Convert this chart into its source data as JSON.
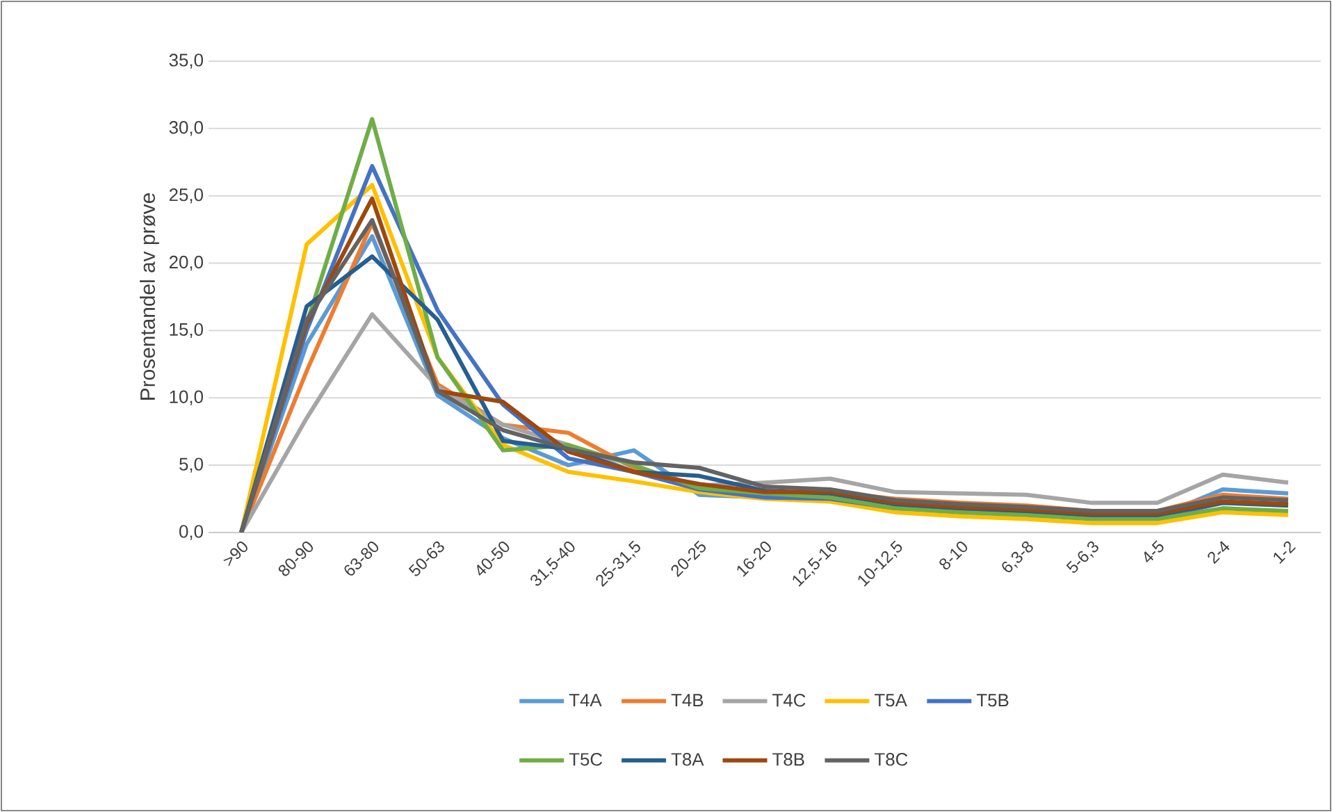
{
  "chart_data": {
    "type": "line",
    "ylabel": "Prosentandel av prøve",
    "categories": [
      ">90",
      "80-90",
      "63-80",
      "50-63",
      "40-50",
      "31,5-40",
      "25-31,5",
      "20-25",
      "16-20",
      "12,5-16",
      "10-12,5",
      "8-10",
      "6,3-8",
      "5-6,3",
      "4-5",
      "2-4",
      "1-2"
    ],
    "ylim": [
      0,
      35
    ],
    "yticks": [
      {
        "value": 0,
        "label": "0,0"
      },
      {
        "value": 5,
        "label": "5,0"
      },
      {
        "value": 10,
        "label": "10,0"
      },
      {
        "value": 15,
        "label": "15,0"
      },
      {
        "value": 20,
        "label": "20,0"
      },
      {
        "value": 25,
        "label": "25,0"
      },
      {
        "value": 30,
        "label": "30,0"
      },
      {
        "value": 35,
        "label": "35,0"
      }
    ],
    "grid": "y",
    "legend": "bottom",
    "marker": "none",
    "line_style": "solid",
    "series": [
      {
        "name": "T4A",
        "color": "#5b9bd5",
        "values": [
          0,
          14,
          22,
          10.2,
          7,
          5,
          6.1,
          2.8,
          2.6,
          2.4,
          1.8,
          1.6,
          1.5,
          1.2,
          1.2,
          3.2,
          2.9
        ]
      },
      {
        "name": "T4B",
        "color": "#ed7d31",
        "values": [
          0,
          12,
          23,
          11,
          8,
          7.4,
          4.8,
          3.5,
          3,
          3,
          2.5,
          2.2,
          2,
          1.6,
          1.6,
          2.8,
          2.5
        ]
      },
      {
        "name": "T4C",
        "color": "#a5a5a5",
        "values": [
          0,
          8.5,
          16.2,
          10.8,
          8,
          6.5,
          4.5,
          3.5,
          3.7,
          4,
          3,
          2.9,
          2.8,
          2.2,
          2.2,
          4.3,
          3.7
        ]
      },
      {
        "name": "T5A",
        "color": "#ffc000",
        "values": [
          0,
          21.4,
          25.8,
          13,
          6.5,
          4.5,
          3.8,
          3,
          2.5,
          2.3,
          1.5,
          1.2,
          1,
          0.7,
          0.7,
          1.5,
          1.3
        ]
      },
      {
        "name": "T5B",
        "color": "#4472c4",
        "values": [
          0,
          15,
          27.2,
          16.5,
          9.5,
          5.5,
          4.5,
          3.2,
          2.6,
          2.5,
          1.8,
          1.6,
          1.4,
          1.1,
          1.1,
          2.2,
          2.1
        ]
      },
      {
        "name": "T5C",
        "color": "#70ad47",
        "values": [
          0,
          15.5,
          30.7,
          13,
          6.1,
          6.5,
          5,
          3.3,
          2.9,
          2.6,
          1.8,
          1.5,
          1.3,
          1,
          1,
          1.8,
          1.6
        ]
      },
      {
        "name": "T8A",
        "color": "#255e91",
        "values": [
          0,
          16.8,
          20.5,
          15.8,
          6.8,
          6.2,
          4.5,
          4.2,
          3.1,
          2.9,
          2.1,
          1.8,
          1.6,
          1.3,
          1.3,
          2.2,
          2
        ]
      },
      {
        "name": "T8B",
        "color": "#9e480e",
        "values": [
          0,
          15.5,
          24.8,
          10.5,
          9.7,
          6,
          4.5,
          3.6,
          3,
          3,
          2.2,
          1.9,
          1.7,
          1.4,
          1.4,
          2.3,
          2.1
        ]
      },
      {
        "name": "T8C",
        "color": "#636363",
        "values": [
          0,
          15.8,
          23.2,
          10.5,
          7.6,
          6.2,
          5.2,
          4.8,
          3.4,
          3.2,
          2.4,
          2.1,
          1.9,
          1.6,
          1.6,
          2.6,
          2.4
        ]
      }
    ]
  }
}
